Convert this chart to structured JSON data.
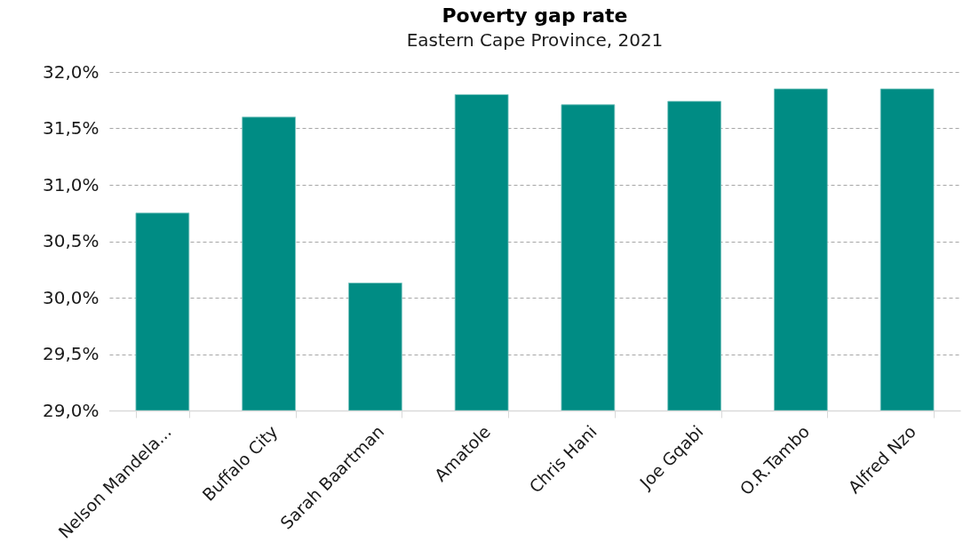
{
  "chart_data": {
    "type": "bar",
    "title": "Poverty gap rate",
    "subtitle": "Eastern Cape Province, 2021",
    "categories": [
      "Nelson Mandela...",
      "Buffalo City",
      "Sarah Baartman",
      "Amatole",
      "Chris Hani",
      "Joe Gqabi",
      "O.R.Tambo",
      "Alfred Nzo"
    ],
    "values": [
      30.75,
      31.6,
      30.13,
      31.8,
      31.71,
      31.74,
      31.85,
      31.85
    ],
    "color": "#008c84",
    "ylim": [
      29,
      32
    ],
    "yticks": [
      {
        "value": 29,
        "label": "29,0%"
      },
      {
        "value": 29.5,
        "label": "29,5%"
      },
      {
        "value": 30,
        "label": "30,0%"
      },
      {
        "value": 30.5,
        "label": "30,5%"
      },
      {
        "value": 31,
        "label": "31,0%"
      },
      {
        "value": 31.5,
        "label": "31,5%"
      },
      {
        "value": 32,
        "label": "32,0%"
      }
    ],
    "grid": "y"
  }
}
